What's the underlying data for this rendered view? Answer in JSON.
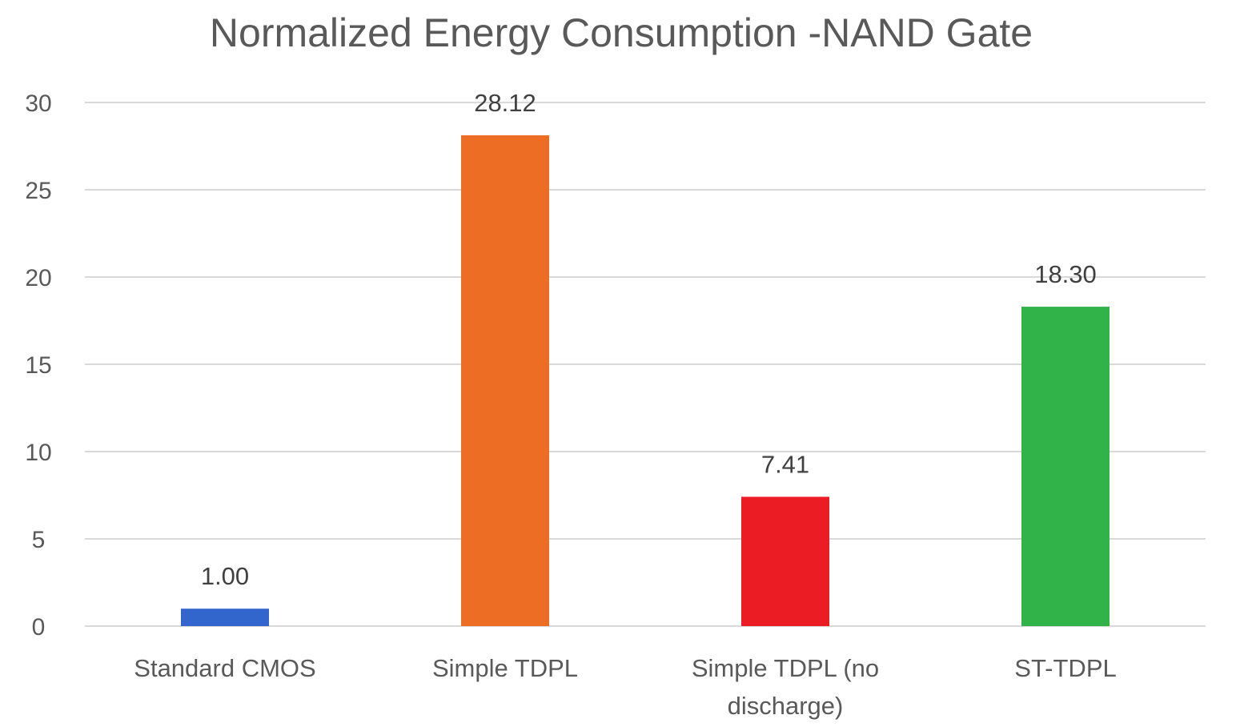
{
  "chart_data": {
    "type": "bar",
    "title": "Normalized Energy Consumption -NAND Gate",
    "xlabel": "",
    "ylabel": "",
    "categories": [
      [
        "Standard CMOS"
      ],
      [
        "Simple TDPL"
      ],
      [
        "Simple TDPL (no",
        "discharge)"
      ],
      [
        "ST-TDPL"
      ]
    ],
    "values": [
      1.0,
      28.12,
      7.41,
      18.3
    ],
    "data_labels": [
      "1.00",
      "28.12",
      "7.41",
      "18.30"
    ],
    "colors": [
      "#3366cc",
      "#ed6d25",
      "#ec1c24",
      "#32b34a"
    ],
    "ylim": [
      0,
      30
    ],
    "yticks": [
      0,
      5,
      10,
      15,
      20,
      25,
      30
    ],
    "grid": true,
    "legend": "none"
  }
}
